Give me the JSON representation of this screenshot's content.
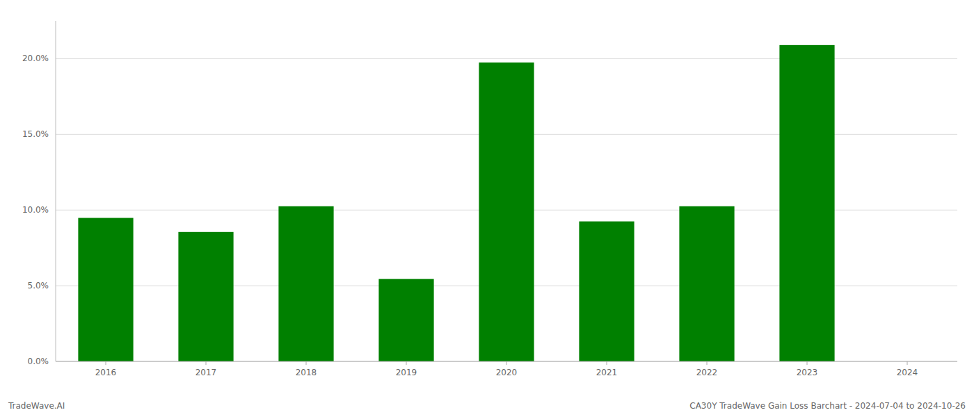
{
  "chart_data": {
    "type": "bar",
    "categories": [
      "2016",
      "2017",
      "2018",
      "2019",
      "2020",
      "2021",
      "2022",
      "2023",
      "2024"
    ],
    "values": [
      0.0948,
      0.0855,
      0.1025,
      0.0545,
      0.1975,
      0.0925,
      0.1025,
      0.209,
      null
    ],
    "color": "#008000",
    "ylim": [
      0,
      0.225
    ],
    "yticks": [
      {
        "value": 0.0,
        "label": "0.0%"
      },
      {
        "value": 0.05,
        "label": "5.0%"
      },
      {
        "value": 0.1,
        "label": "10.0%"
      },
      {
        "value": 0.15,
        "label": "15.0%"
      },
      {
        "value": 0.2,
        "label": "20.0%"
      }
    ],
    "grid": true,
    "annotations": [
      "TradeWave.AI",
      "CA30Y TradeWave Gain Loss Barchart - 2024-07-04 to 2024-10-26"
    ]
  }
}
